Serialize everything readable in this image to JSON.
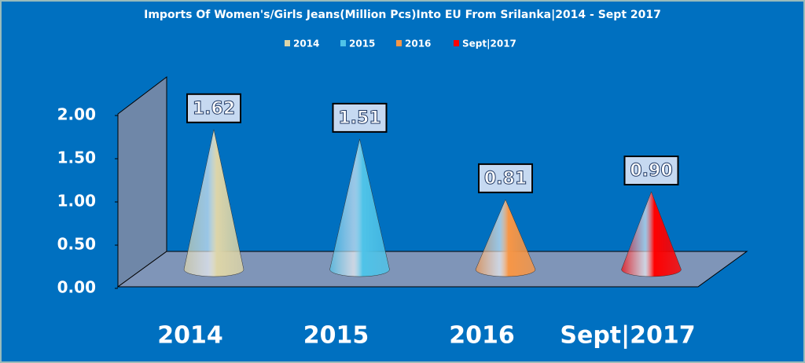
{
  "chart_data": {
    "type": "cone",
    "title": "Imports Of Women's/Girls Jeans(Million Pcs)Into EU From Srilanka|2014 - Sept 2017",
    "categories": [
      "2014",
      "2015",
      "2016",
      "Sept|2017"
    ],
    "values": [
      1.62,
      1.51,
      0.81,
      0.9
    ],
    "value_labels": [
      "1.62",
      "1.51",
      "0.81",
      "0.90"
    ],
    "colors": [
      "#ddd5a8",
      "#4fc3e8",
      "#f79646",
      "#ff0000"
    ],
    "ylim": [
      0,
      2
    ],
    "yticks": [
      {
        "value": 0,
        "label": "0.00"
      },
      {
        "value": 0.5,
        "label": "0.50"
      },
      {
        "value": 1,
        "label": "1.00"
      },
      {
        "value": 1.5,
        "label": "1.50"
      },
      {
        "value": 2,
        "label": "2.00"
      }
    ],
    "legend": "top"
  }
}
